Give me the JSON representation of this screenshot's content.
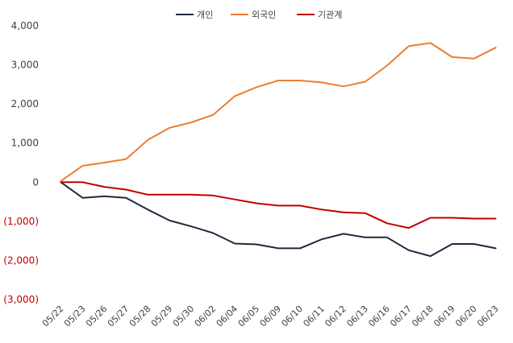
{
  "chart_data": {
    "type": "line",
    "title": "",
    "xlabel": "",
    "ylabel": "",
    "ylim": [
      -3000,
      4000
    ],
    "yticks": [
      4000,
      3000,
      2000,
      1000,
      0,
      -1000,
      -2000,
      -3000
    ],
    "ytick_labels": [
      "4,000",
      "3,000",
      "2,000",
      "1,000",
      "0",
      "(1,000)",
      "(2,000)",
      "(3,000)"
    ],
    "categories": [
      "05/22",
      "05/23",
      "05/26",
      "05/27",
      "05/28",
      "05/29",
      "05/30",
      "06/02",
      "06/04",
      "06/05",
      "06/09",
      "06/10",
      "06/11",
      "06/12",
      "06/13",
      "06/16",
      "06/17",
      "06/18",
      "06/19",
      "06/20",
      "06/23"
    ],
    "legend_position": "top",
    "grid": false,
    "series": [
      {
        "name": "개인",
        "color": "#1f2a3c",
        "values": [
          0,
          -400,
          -360,
          -400,
          -700,
          -980,
          -1130,
          -1300,
          -1570,
          -1590,
          -1690,
          -1690,
          -1460,
          -1320,
          -1410,
          -1410,
          -1740,
          -1890,
          -1580,
          -1580,
          -1690
        ]
      },
      {
        "name": "외국인",
        "color": "#ed7d31",
        "values": [
          30,
          420,
          500,
          590,
          1080,
          1390,
          1530,
          1720,
          2200,
          2430,
          2600,
          2600,
          2550,
          2450,
          2570,
          2980,
          3480,
          3560,
          3200,
          3160,
          3440
        ]
      },
      {
        "name": "기관계",
        "color": "#c00000",
        "values": [
          0,
          0,
          -120,
          -190,
          -320,
          -320,
          -320,
          -340,
          -440,
          -540,
          -600,
          -600,
          -700,
          -770,
          -790,
          -1050,
          -1170,
          -910,
          -910,
          -930,
          -930
        ]
      }
    ]
  }
}
